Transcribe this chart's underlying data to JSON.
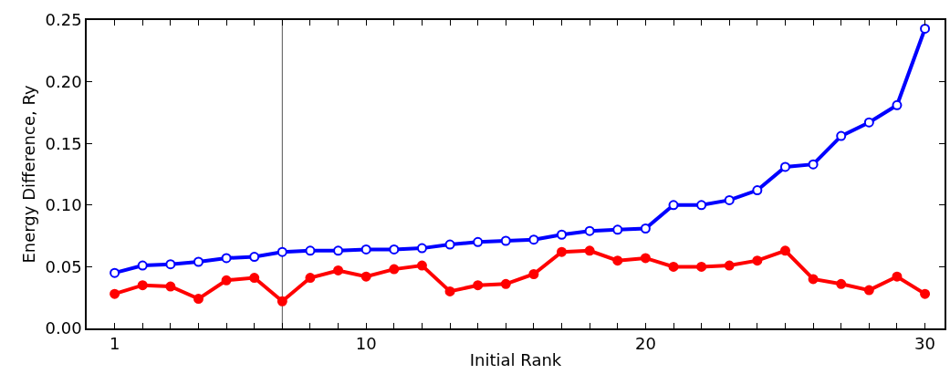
{
  "chart_data": {
    "type": "line",
    "xlabel": "Initial Rank",
    "ylabel": "Energy Difference, Ry",
    "x": [
      1,
      2,
      3,
      4,
      5,
      6,
      7,
      8,
      9,
      10,
      11,
      12,
      13,
      14,
      15,
      16,
      17,
      18,
      19,
      20,
      21,
      22,
      23,
      24,
      25,
      26,
      27,
      28,
      29,
      30
    ],
    "series": [
      {
        "color": "#0000ff",
        "values": [
          0.045,
          0.051,
          0.052,
          0.054,
          0.057,
          0.058,
          0.062,
          0.063,
          0.063,
          0.064,
          0.064,
          0.065,
          0.068,
          0.07,
          0.071,
          0.072,
          0.076,
          0.079,
          0.08,
          0.081,
          0.1,
          0.1,
          0.104,
          0.112,
          0.131,
          0.133,
          0.156,
          0.167,
          0.181,
          0.243
        ]
      },
      {
        "color": "#ff0000",
        "values": [
          0.028,
          0.035,
          0.034,
          0.024,
          0.039,
          0.041,
          0.022,
          0.041,
          0.047,
          0.042,
          0.048,
          0.051,
          0.03,
          0.035,
          0.036,
          0.044,
          0.062,
          0.063,
          0.055,
          0.057,
          0.05,
          0.05,
          0.051,
          0.055,
          0.063,
          0.04,
          0.036,
          0.031,
          0.042,
          0.028
        ]
      }
    ],
    "xlim": [
      0,
      30.7
    ],
    "xticks": [
      1,
      {
        "value": 2,
        "label": null
      },
      {
        "value": 3,
        "label": null
      },
      {
        "value": 4,
        "label": null
      },
      {
        "value": 5,
        "label": null
      },
      {
        "value": 6,
        "label": null
      },
      {
        "value": 7,
        "label": null
      },
      {
        "value": 8,
        "label": null
      },
      {
        "value": 9,
        "label": null
      },
      10,
      {
        "value": 11,
        "label": null
      },
      {
        "value": 12,
        "label": null
      },
      {
        "value": 13,
        "label": null
      },
      {
        "value": 14,
        "label": null
      },
      {
        "value": 15,
        "label": null
      },
      {
        "value": 16,
        "label": null
      },
      {
        "value": 17,
        "label": null
      },
      {
        "value": 18,
        "label": null
      },
      {
        "value": 19,
        "label": null
      },
      20,
      {
        "value": 21,
        "label": null
      },
      {
        "value": 22,
        "label": null
      },
      {
        "value": 23,
        "label": null
      },
      {
        "value": 24,
        "label": null
      },
      {
        "value": 25,
        "label": null
      },
      {
        "value": 26,
        "label": null
      },
      {
        "value": 27,
        "label": null
      },
      {
        "value": 28,
        "label": null
      },
      {
        "value": 29,
        "label": null
      },
      30
    ],
    "ylim": [
      0,
      0.25
    ],
    "yticks": [
      {
        "value": 0,
        "label": "0.00"
      },
      {
        "value": 0.05,
        "label": "0.05"
      },
      {
        "value": 0.1,
        "label": "0.10"
      },
      {
        "value": 0.15,
        "label": "0.15"
      },
      {
        "value": 0.2,
        "label": "0.20"
      },
      {
        "value": 0.25,
        "label": "0.25"
      }
    ],
    "ref_lines": [
      {
        "axis": "x",
        "value": 7,
        "color": "#555555"
      }
    ],
    "grid": false,
    "marker": "circle",
    "line_style": "solid"
  }
}
